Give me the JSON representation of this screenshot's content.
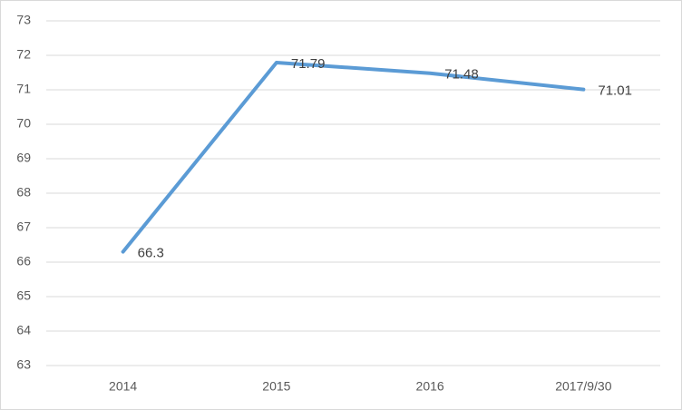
{
  "chart_data": {
    "type": "line",
    "categories": [
      "2014",
      "2015",
      "2016",
      "2017/9/30"
    ],
    "values": [
      66.3,
      71.79,
      71.48,
      71.01
    ],
    "color": "#5b9bd5",
    "ylim": [
      63,
      73
    ],
    "yticks": [
      63,
      64,
      65,
      66,
      67,
      68,
      69,
      70,
      71,
      72,
      73
    ],
    "grid": true
  }
}
